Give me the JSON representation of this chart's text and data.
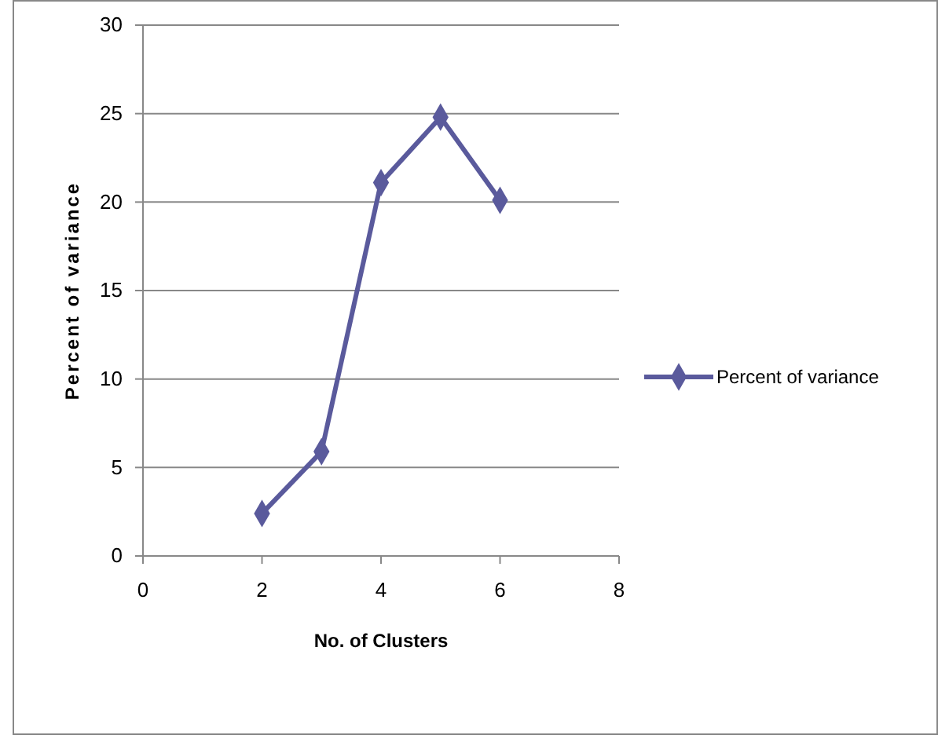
{
  "chart_data": {
    "type": "line",
    "xlabel": "No. of Clusters",
    "ylabel": "Percent of variance",
    "x": [
      2,
      3,
      4,
      5,
      6
    ],
    "series": [
      {
        "name": "Percent of variance",
        "color": "#5a5a9c",
        "values": [
          2.4,
          5.9,
          21.1,
          24.8,
          20.1
        ]
      }
    ],
    "xlim": [
      0,
      8
    ],
    "xticks": [
      0,
      2,
      4,
      6,
      8
    ],
    "ylim": [
      0,
      30
    ],
    "yticks": [
      0,
      5,
      10,
      15,
      20,
      25,
      30
    ],
    "grid": "y",
    "legend": "right",
    "marker": "diamond",
    "line_style": "solid"
  }
}
